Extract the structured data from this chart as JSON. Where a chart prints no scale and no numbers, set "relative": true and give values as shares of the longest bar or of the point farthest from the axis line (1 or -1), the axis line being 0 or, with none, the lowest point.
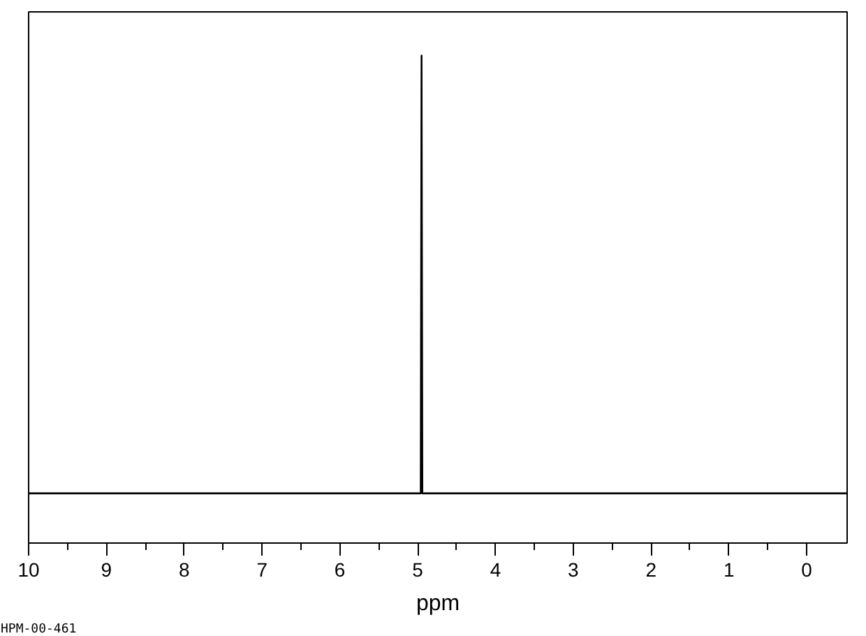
{
  "chart_data": {
    "type": "line",
    "relative": true,
    "xlabel": "ppm",
    "x": [
      10,
      4.96,
      4.95,
      4.94,
      -0.52
    ],
    "series": [
      {
        "color": "#000000",
        "values": [
          0,
          0,
          1,
          0,
          0
        ]
      }
    ],
    "xlim": [
      10,
      -0.52
    ],
    "xticks": [
      10,
      9,
      8,
      7,
      6,
      5,
      4,
      3,
      2,
      1,
      0
    ],
    "grid": false,
    "marker": "none",
    "line_style": "solid",
    "annotations": [
      "HPM-00-461"
    ]
  }
}
